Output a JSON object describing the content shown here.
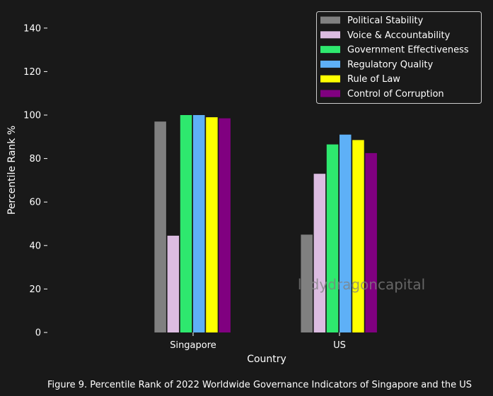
{
  "chart_data": {
    "type": "bar",
    "categories": [
      "Singapore",
      "US"
    ],
    "series": [
      {
        "name": "Political Stability",
        "color": "#808080",
        "values": [
          97,
          45
        ]
      },
      {
        "name": "Voice & Accountability",
        "color": "#dcbce1",
        "values": [
          44.5,
          73
        ]
      },
      {
        "name": "Government Effectiveness",
        "color": "#2ee86e",
        "values": [
          100,
          86.5
        ]
      },
      {
        "name": "Regulatory Quality",
        "color": "#5eb0f7",
        "values": [
          100,
          91
        ]
      },
      {
        "name": "Rule of Law",
        "color": "#ffff00",
        "values": [
          99,
          88.5
        ]
      },
      {
        "name": "Control of Corruption",
        "color": "#800080",
        "values": [
          98.5,
          82.5
        ]
      }
    ],
    "xlabel": "Country",
    "ylabel": "Percentile Rank %",
    "ylim": [
      0,
      145
    ],
    "yticks": [
      0,
      20,
      40,
      60,
      80,
      100,
      120,
      140
    ],
    "grid": false,
    "legend_position": "top-right"
  },
  "watermark": "ladydragoncapital",
  "caption": "Figure 9. Percentile Rank of 2022 Worldwide Governance Indicators of Singapore and the US"
}
